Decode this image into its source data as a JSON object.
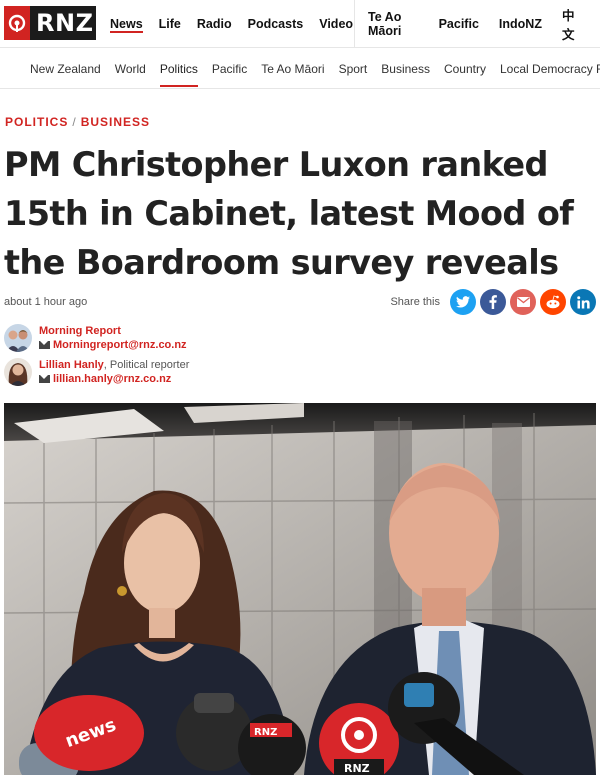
{
  "brand": {
    "logo_text": "RNZ"
  },
  "main_nav": [
    {
      "label": "News",
      "active": true
    },
    {
      "label": "Life"
    },
    {
      "label": "Radio"
    },
    {
      "label": "Podcasts"
    },
    {
      "label": "Video"
    }
  ],
  "secondary_nav": [
    {
      "label": "Te Ao Māori"
    },
    {
      "label": "Pacific"
    },
    {
      "label": "IndoNZ"
    },
    {
      "label": "中文"
    }
  ],
  "sub_nav": [
    {
      "label": "New Zealand"
    },
    {
      "label": "World"
    },
    {
      "label": "Politics",
      "active": true
    },
    {
      "label": "Pacific"
    },
    {
      "label": "Te Ao Māori"
    },
    {
      "label": "Sport"
    },
    {
      "label": "Business"
    },
    {
      "label": "Country"
    },
    {
      "label": "Local Democracy Re"
    }
  ],
  "article": {
    "category_1": "POLITICS",
    "category_sep": "/",
    "category_2": "BUSINESS",
    "headline": "PM Christopher Luxon ranked 15th in Cabinet, latest Mood of the Boardroom survey reveals",
    "timestamp": "about 1 hour ago",
    "share_label": "Share this",
    "bylines": [
      {
        "name": "Morning Report",
        "role": "",
        "email": "Morningreport@rnz.co.nz"
      },
      {
        "name": "Lillian Hanly",
        "role": ", Political reporter",
        "email": "lillian.hanly@rnz.co.nz"
      }
    ]
  },
  "share_buttons": [
    {
      "icon": "twitter-icon",
      "color": "#1da1f2",
      "glyph": "t"
    },
    {
      "icon": "facebook-icon",
      "color": "#3b5998",
      "glyph": "f"
    },
    {
      "icon": "email-icon",
      "color": "#e0625a",
      "glyph": "✉"
    },
    {
      "icon": "reddit-icon",
      "color": "#ff4500",
      "glyph": "r"
    },
    {
      "icon": "linkedin-icon",
      "color": "#0a77b5",
      "glyph": "in"
    }
  ],
  "colors": {
    "accent": "#d12421",
    "text": "#222222"
  }
}
